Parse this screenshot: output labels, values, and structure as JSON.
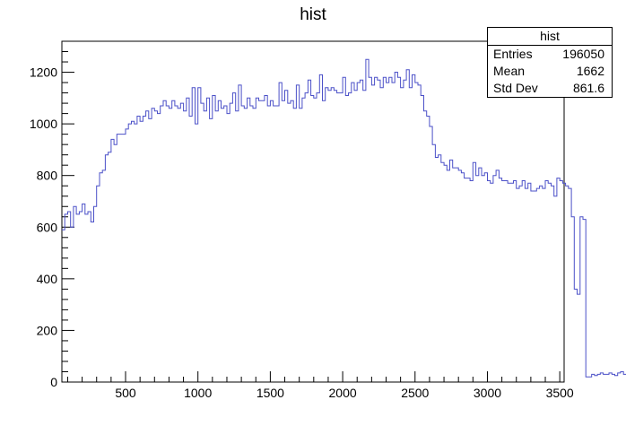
{
  "chart_data": {
    "type": "histogram",
    "title": "hist",
    "xlim": [
      60,
      3530
    ],
    "ylim": [
      0,
      1320
    ],
    "x_ticks": [
      500,
      1000,
      1500,
      2000,
      2500,
      3000,
      3500
    ],
    "y_ticks": [
      200,
      400,
      600,
      800,
      1000,
      1200
    ],
    "grid": false,
    "line_color": "#4b50c8",
    "bins_start": 60,
    "bin_width": 20,
    "values": [
      590,
      650,
      660,
      600,
      680,
      650,
      660,
      690,
      650,
      660,
      620,
      680,
      760,
      810,
      820,
      880,
      890,
      940,
      920,
      960,
      960,
      960,
      980,
      1000,
      1010,
      1000,
      1030,
      1010,
      1030,
      1050,
      1020,
      1060,
      1050,
      1040,
      1070,
      1090,
      1070,
      1060,
      1090,
      1070,
      1060,
      1080,
      1050,
      1100,
      1030,
      1140,
      1000,
      1140,
      1080,
      1050,
      1100,
      1020,
      1110,
      1050,
      1090,
      1060,
      1070,
      1040,
      1080,
      1120,
      1050,
      1150,
      1070,
      1060,
      1100,
      1070,
      1060,
      1100,
      1090,
      1090,
      1110,
      1070,
      1090,
      1070,
      1070,
      1160,
      1090,
      1130,
      1080,
      1090,
      1060,
      1150,
      1060,
      1100,
      1120,
      1170,
      1110,
      1100,
      1120,
      1190,
      1090,
      1140,
      1130,
      1140,
      1130,
      1120,
      1120,
      1180,
      1110,
      1120,
      1160,
      1130,
      1160,
      1170,
      1130,
      1250,
      1180,
      1150,
      1180,
      1170,
      1140,
      1180,
      1160,
      1180,
      1160,
      1200,
      1180,
      1140,
      1170,
      1210,
      1140,
      1190,
      1160,
      1150,
      1110,
      1050,
      1030,
      990,
      920,
      870,
      880,
      850,
      840,
      820,
      860,
      830,
      830,
      820,
      810,
      790,
      790,
      780,
      850,
      800,
      830,
      800,
      810,
      780,
      770,
      800,
      820,
      790,
      780,
      780,
      770,
      770,
      780,
      750,
      760,
      780,
      750,
      770,
      740,
      740,
      750,
      760,
      750,
      780,
      770,
      760,
      720,
      790,
      780,
      770,
      760,
      750,
      640,
      360,
      340,
      640,
      630,
      20,
      20,
      30,
      25,
      30,
      35,
      30,
      30,
      35,
      30,
      25,
      35,
      40,
      30
    ],
    "stats": {
      "title": "hist",
      "rows": [
        {
          "label": "Entries",
          "value": "196050"
        },
        {
          "label": "Mean",
          "value": "1662"
        },
        {
          "label": "Std Dev",
          "value": "861.6"
        }
      ]
    }
  }
}
